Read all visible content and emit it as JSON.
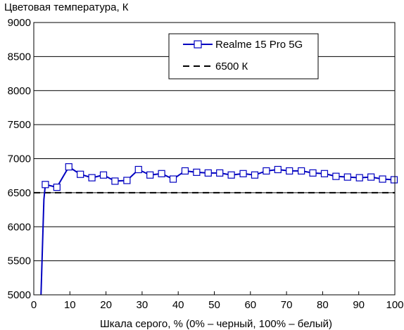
{
  "chart_data": {
    "type": "line",
    "title": "",
    "ylabel": "Цветовая температура, К",
    "xlabel": "Шкала серого, % (0% – черный, 100% – белый)",
    "xlim": [
      0,
      100
    ],
    "ylim": [
      5000,
      9000
    ],
    "xticks": [
      0,
      10,
      20,
      30,
      40,
      50,
      60,
      70,
      80,
      90,
      100
    ],
    "yticks": [
      5000,
      5500,
      6000,
      6500,
      7000,
      7500,
      8000,
      8500,
      9000
    ],
    "grid": "horizontal",
    "legend_position": "top-right",
    "series": [
      {
        "name": "Realme 15 Pro 5G",
        "color": "#0000c0",
        "marker": "square",
        "line_only_x": [
          2.0,
          2.2,
          2.4,
          2.6,
          2.8
        ],
        "line_only_y": [
          5000,
          5350,
          5700,
          6050,
          6400
        ],
        "x": [
          3.2,
          6.4,
          9.7,
          12.9,
          16.1,
          19.3,
          22.5,
          25.8,
          29.0,
          32.2,
          35.4,
          38.6,
          41.9,
          45.1,
          48.3,
          51.5,
          54.7,
          58.0,
          61.2,
          64.4,
          67.6,
          70.8,
          74.1,
          77.3,
          80.5,
          83.7,
          86.9,
          90.2,
          93.4,
          96.6,
          99.8
        ],
        "values": [
          6620,
          6580,
          6880,
          6770,
          6720,
          6760,
          6670,
          6680,
          6840,
          6760,
          6780,
          6700,
          6820,
          6800,
          6790,
          6790,
          6760,
          6780,
          6760,
          6820,
          6840,
          6820,
          6820,
          6790,
          6780,
          6740,
          6730,
          6720,
          6730,
          6700,
          6690
        ]
      },
      {
        "name": "6500 К",
        "color": "#000000",
        "style": "dashed",
        "x": [
          0,
          100
        ],
        "values": [
          6500,
          6500
        ]
      }
    ]
  }
}
